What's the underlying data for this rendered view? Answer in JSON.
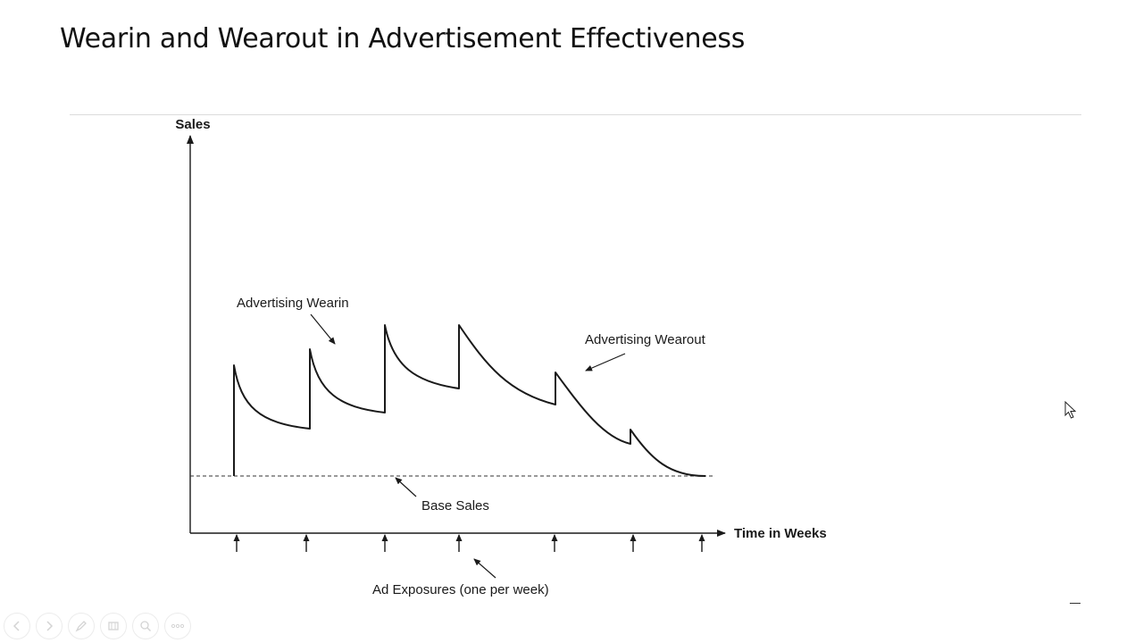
{
  "slide": {
    "title": "Wearin and Wearout in Advertisement Effectiveness"
  },
  "diagram": {
    "y_axis_label": "Sales",
    "x_axis_label": "Time in Weeks",
    "annotations": {
      "wearin": "Advertising Wearin",
      "wearout": "Advertising Wearout",
      "base_sales": "Base Sales",
      "ad_exposures": "Ad Exposures (one per week)"
    },
    "ad_exposure_count": 7
  },
  "toolbar": {
    "icons": [
      "previous-icon",
      "next-icon",
      "pen-icon",
      "slides-icon",
      "zoom-icon",
      "more-icon"
    ]
  }
}
